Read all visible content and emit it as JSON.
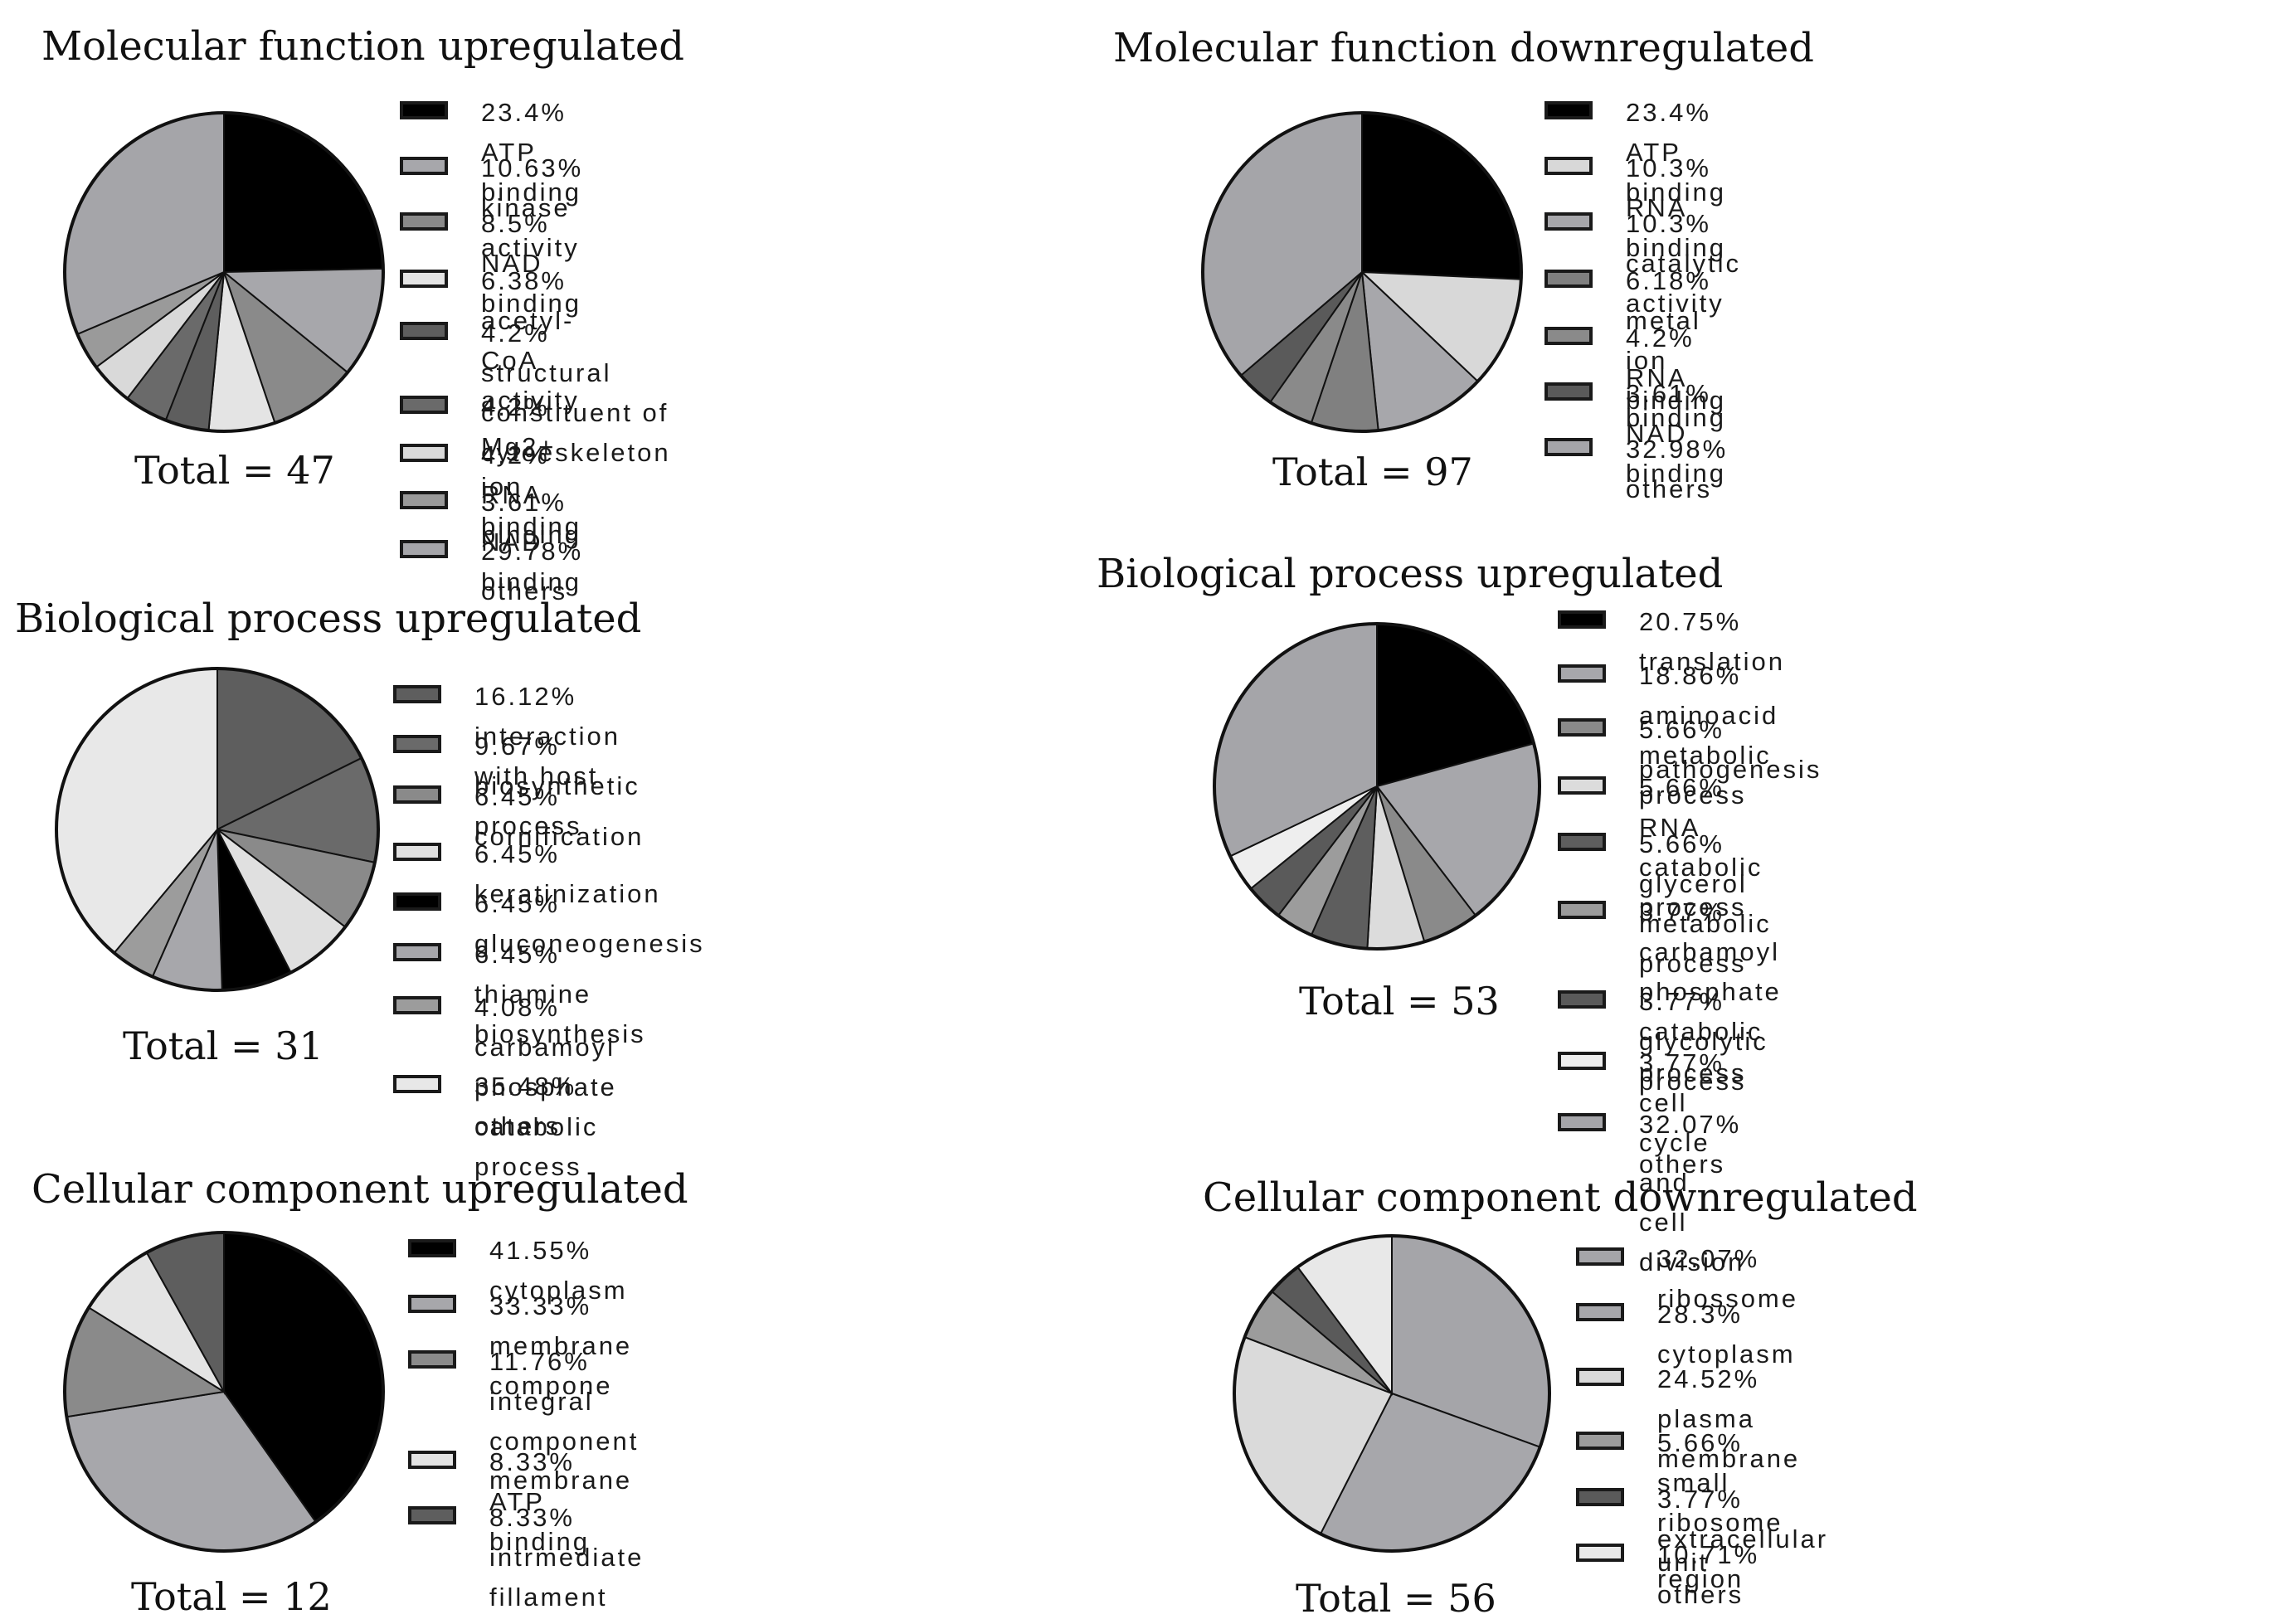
{
  "chart_data": [
    {
      "type": "pie",
      "title": "Molecular function upregulated",
      "total_label": "Total = 47",
      "slices": [
        {
          "label": "23.4% ATP binding",
          "value": 23.4,
          "color": "#000000"
        },
        {
          "label": "10.63% kinase activity",
          "value": 10.63,
          "color": "#a7a7ab"
        },
        {
          "label": "8.5% NAD binding",
          "value": 8.5,
          "color": "#8a8a8a"
        },
        {
          "label": "6.38% acetyl-CoA activity",
          "value": 6.38,
          "color": "#e4e4e4"
        },
        {
          "label": "4.2% structural constituent of",
          "label_line2": "cytoeskeleton",
          "value": 4.2,
          "color": "#5e5e5e"
        },
        {
          "label": "4.2% Mg2+ ion binding",
          "value": 4.2,
          "color": "#6a6a6a"
        },
        {
          "label": "4.2% RNA binding",
          "value": 4.2,
          "color": "#d9d9d9"
        },
        {
          "label": "3.61% NAD binding",
          "value": 3.61,
          "color": "#9a9a9a"
        },
        {
          "label": "29.78% others",
          "value": 29.78,
          "color": "#a5a5a9"
        }
      ]
    },
    {
      "type": "pie",
      "title": "Molecular function downregulated",
      "total_label": "Total = 97",
      "slices": [
        {
          "label": "23.4% ATP binding",
          "value": 23.4,
          "color": "#000000"
        },
        {
          "label": "10.3% RNA binding",
          "value": 10.3,
          "color": "#d8d8d8"
        },
        {
          "label": "10.3% catalytic activity",
          "value": 10.3,
          "color": "#a7a7ab"
        },
        {
          "label": "6.18% metal ion binding",
          "value": 6.18,
          "color": "#808080"
        },
        {
          "label": "4.2% RNA binding",
          "value": 4.2,
          "color": "#8a8a8a"
        },
        {
          "label": "3.61% NAD binding",
          "value": 3.61,
          "color": "#5a5a5a"
        },
        {
          "label": "32.98% others",
          "value": 32.98,
          "color": "#a5a5a9"
        }
      ]
    },
    {
      "type": "pie",
      "title": "Biological process upregulated",
      "total_label": "Total = 31",
      "slices": [
        {
          "label": "16.12% interaction with host",
          "value": 16.12,
          "color": "#5e5e5e"
        },
        {
          "label": "9.67% biosynthetic process",
          "value": 9.67,
          "color": "#6a6a6a"
        },
        {
          "label": "6.45% cornification",
          "value": 6.45,
          "color": "#8a8a8a"
        },
        {
          "label": "6.45% keratinization",
          "value": 6.45,
          "color": "#e0e0e0"
        },
        {
          "label": "6.45% gluconeogenesis",
          "value": 6.45,
          "color": "#000000"
        },
        {
          "label": "6.45% thiamine biosynthesis",
          "value": 6.45,
          "color": "#a7a7ab"
        },
        {
          "label": "4.08% carbamoyl phosphate",
          "label_line2": "catabolic process",
          "value": 4.08,
          "color": "#9c9c9c"
        },
        {
          "label": "35.48% others",
          "value": 35.48,
          "color": "#e8e8e8"
        }
      ]
    },
    {
      "type": "pie",
      "title": "Biological process upregulated",
      "total_label": "Total = 53",
      "slices": [
        {
          "label": "20.75% translation",
          "value": 20.75,
          "color": "#000000"
        },
        {
          "label": "18.86% aminoacid metabolic process",
          "value": 18.86,
          "color": "#a7a7ab"
        },
        {
          "label": "5.66% pathogenesis",
          "value": 5.66,
          "color": "#8a8a8a"
        },
        {
          "label": "5.66% RNA catabolic process",
          "value": 5.66,
          "color": "#dcdcdc"
        },
        {
          "label": "5.66% glycerol metabolic process",
          "value": 5.66,
          "color": "#5e5e5e"
        },
        {
          "label": "3.77% carbamoyl phosphate catabolic",
          "label_line2": "process",
          "value": 3.77,
          "color": "#9c9c9c"
        },
        {
          "label": "3.77% glycolytic process",
          "value": 3.77,
          "color": "#5a5a5a"
        },
        {
          "label": "3.77% cell cycle and cell division",
          "value": 3.77,
          "color": "#eeeeee"
        },
        {
          "label": "32.07% others",
          "value": 32.07,
          "color": "#a5a5a9"
        }
      ]
    },
    {
      "type": "pie",
      "title": "Cellular component upregulated",
      "total_label": "Total = 12",
      "slices": [
        {
          "label": "41.55% cytoplasm",
          "value": 41.55,
          "color": "#000000"
        },
        {
          "label": "33.33% membrane compone",
          "value": 33.33,
          "color": "#a7a7ab"
        },
        {
          "label": "11.76% integral component",
          "label_line2": "membrane",
          "value": 11.76,
          "color": "#8a8a8a"
        },
        {
          "label": "8.33% ATP binding",
          "value": 8.33,
          "color": "#e4e4e4"
        },
        {
          "label": "8.33% intrmediate fillament",
          "value": 8.33,
          "color": "#5e5e5e"
        }
      ]
    },
    {
      "type": "pie",
      "title": "Cellular component downregulated",
      "total_label": "Total = 56",
      "slices": [
        {
          "label": "32.07% ribossome",
          "value": 32.07,
          "color": "#a5a5a9"
        },
        {
          "label": "28.3% cytoplasm",
          "value": 28.3,
          "color": "#a7a7ab"
        },
        {
          "label": "24.52% plasma membrane",
          "value": 24.52,
          "color": "#dadada"
        },
        {
          "label": "5.66% small ribosome unit",
          "value": 5.66,
          "color": "#9c9c9c"
        },
        {
          "label": "3.77% extracellular region",
          "value": 3.77,
          "color": "#5a5a5a"
        },
        {
          "label": "10.71% others",
          "value": 10.71,
          "color": "#e8e8e8"
        }
      ]
    }
  ]
}
